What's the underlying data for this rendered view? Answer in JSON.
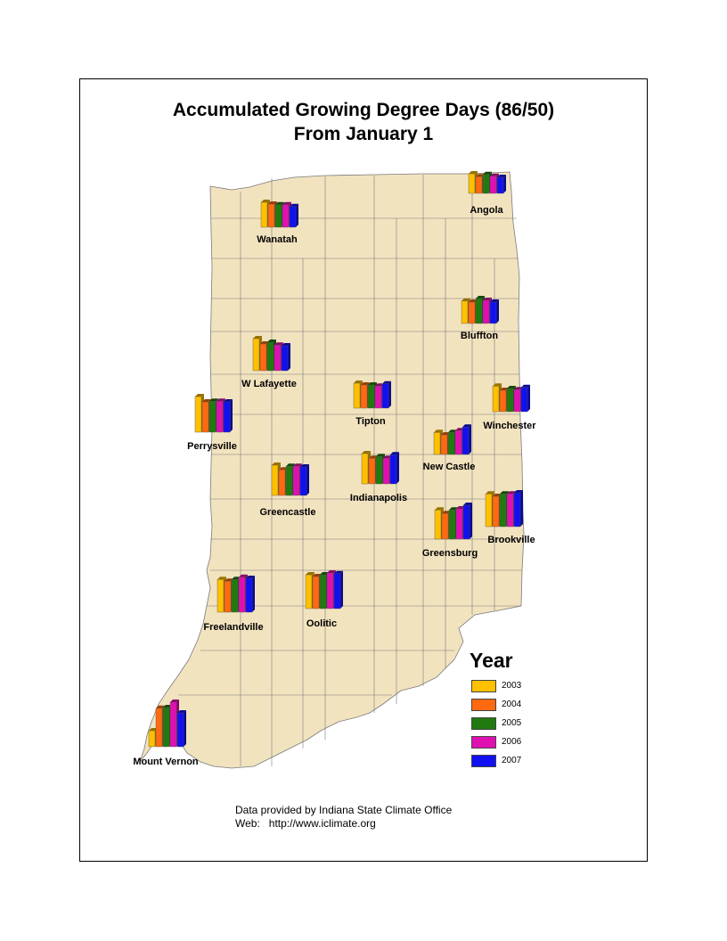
{
  "title": {
    "line1": "Accumulated Growing Degree Days (86/50)",
    "line2": "From January 1"
  },
  "legend": {
    "title": "Year",
    "items": [
      {
        "label": "2003",
        "color": "#ffc000"
      },
      {
        "label": "2004",
        "color": "#ff6a10"
      },
      {
        "label": "2005",
        "color": "#217a10"
      },
      {
        "label": "2006",
        "color": "#e010b0"
      },
      {
        "label": "2007",
        "color": "#1010f0"
      }
    ]
  },
  "credits": {
    "line1": "Data provided by Indiana State Climate Office",
    "line2": "Web:   http://www.iclimate.org"
  },
  "stations": [
    {
      "name": "Angola",
      "values": [
        0.55,
        0.47,
        0.53,
        0.48,
        0.45
      ]
    },
    {
      "name": "Wanatah",
      "values": [
        0.7,
        0.65,
        0.63,
        0.63,
        0.58
      ]
    },
    {
      "name": "Bluffton",
      "values": [
        0.63,
        0.6,
        0.7,
        0.65,
        0.6
      ]
    },
    {
      "name": "W Lafayette",
      "values": [
        0.9,
        0.75,
        0.8,
        0.72,
        0.7
      ]
    },
    {
      "name": "Tipton",
      "values": [
        0.7,
        0.65,
        0.65,
        0.62,
        0.68
      ]
    },
    {
      "name": "Winchester",
      "values": [
        0.72,
        0.6,
        0.65,
        0.62,
        0.68
      ]
    },
    {
      "name": "Perrysville",
      "values": [
        1.0,
        0.85,
        0.87,
        0.87,
        0.85
      ]
    },
    {
      "name": "New Castle",
      "values": [
        0.62,
        0.55,
        0.62,
        0.67,
        0.77
      ]
    },
    {
      "name": "Greencastle",
      "values": [
        0.85,
        0.72,
        0.82,
        0.82,
        0.8
      ]
    },
    {
      "name": "Indianapolis",
      "values": [
        0.85,
        0.72,
        0.77,
        0.72,
        0.82
      ]
    },
    {
      "name": "Brookville",
      "values": [
        0.92,
        0.85,
        0.92,
        0.92,
        0.95
      ]
    },
    {
      "name": "Greensburg",
      "values": [
        0.82,
        0.72,
        0.82,
        0.85,
        0.95
      ]
    },
    {
      "name": "Freelandville",
      "values": [
        0.92,
        0.87,
        0.92,
        0.98,
        0.95
      ]
    },
    {
      "name": "Oolitic",
      "values": [
        0.95,
        0.9,
        0.95,
        1.0,
        0.98
      ]
    },
    {
      "name": "Mount Vernon",
      "values": [
        0.45,
        1.08,
        1.1,
        1.25,
        0.95
      ]
    }
  ]
}
